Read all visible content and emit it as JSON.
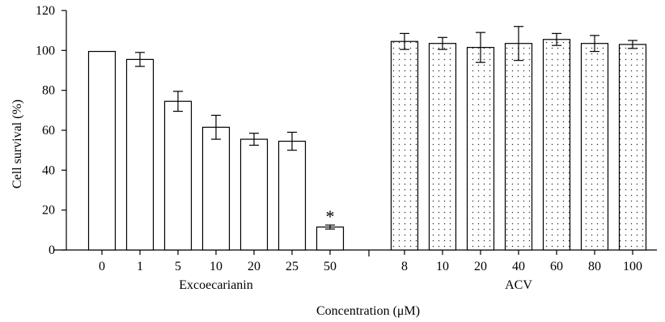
{
  "chart_data": {
    "type": "bar",
    "ylabel": "Cell survival (%)",
    "xlabel": "Concentration (μM)",
    "ylim": [
      0,
      120
    ],
    "yticks": [
      0,
      20,
      40,
      60,
      80,
      100,
      120
    ],
    "grid": false,
    "groups": [
      {
        "name": "Excoecarianin",
        "pattern": "plain",
        "categories": [
          "0",
          "1",
          "5",
          "10",
          "20",
          "25",
          "50"
        ],
        "values": [
          99.5,
          95.5,
          74.5,
          61.5,
          55.5,
          54.5,
          11.5
        ],
        "errors": [
          0,
          3.5,
          5,
          6,
          3,
          4.5,
          1
        ],
        "annotations": [
          "",
          "",
          "",
          "",
          "",
          "",
          "*"
        ]
      },
      {
        "name": "ACV",
        "pattern": "dotted",
        "categories": [
          "8",
          "10",
          "20",
          "40",
          "60",
          "80",
          "100"
        ],
        "values": [
          104.5,
          103.5,
          101.5,
          103.5,
          105.5,
          103.5,
          103
        ],
        "errors": [
          4,
          3,
          7.5,
          8.5,
          3,
          4,
          2
        ]
      }
    ]
  }
}
